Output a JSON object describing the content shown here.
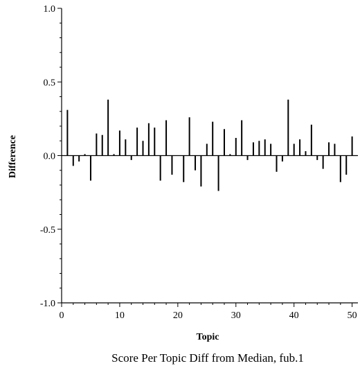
{
  "chart_data": {
    "type": "bar",
    "title": "Score Per Topic Diff from Median, fub.1",
    "xlabel": "Topic",
    "ylabel": "Difference",
    "xlim": [
      0,
      51
    ],
    "ylim": [
      -1.0,
      1.0
    ],
    "x_ticks": [
      0,
      10,
      20,
      30,
      40,
      50
    ],
    "y_ticks": [
      -1.0,
      -0.5,
      0.0,
      0.5,
      1.0
    ],
    "x_tick_labels": [
      "0",
      "10",
      "20",
      "30",
      "40",
      "50"
    ],
    "y_tick_labels": [
      "-1.0",
      "-0.5",
      "0.0",
      "0.5",
      "1.0"
    ],
    "grid": false,
    "legend": "none",
    "series": [
      {
        "x": [
          1,
          2,
          3,
          4,
          5,
          6,
          7,
          8,
          9,
          10,
          11,
          12,
          13,
          14,
          15,
          16,
          17,
          18,
          19,
          20,
          21,
          22,
          23,
          24,
          25,
          26,
          27,
          28,
          29,
          30,
          31,
          32,
          33,
          34,
          35,
          36,
          37,
          38,
          39,
          40,
          41,
          42,
          43,
          44,
          45,
          46,
          47,
          48,
          49,
          50
        ],
        "values": [
          0.31,
          -0.07,
          -0.04,
          0.01,
          -0.17,
          0.15,
          0.14,
          0.38,
          0.01,
          0.17,
          0.11,
          -0.03,
          0.19,
          0.1,
          0.22,
          0.19,
          -0.17,
          0.24,
          -0.13,
          0.0,
          -0.18,
          0.26,
          -0.1,
          -0.21,
          0.08,
          0.23,
          -0.24,
          0.18,
          0.01,
          0.12,
          0.24,
          -0.03,
          0.09,
          0.1,
          0.11,
          0.08,
          -0.11,
          -0.04,
          0.38,
          0.08,
          0.11,
          0.03,
          0.21,
          -0.03,
          -0.09,
          0.09,
          0.08,
          -0.18,
          -0.13,
          0.13
        ]
      }
    ]
  }
}
